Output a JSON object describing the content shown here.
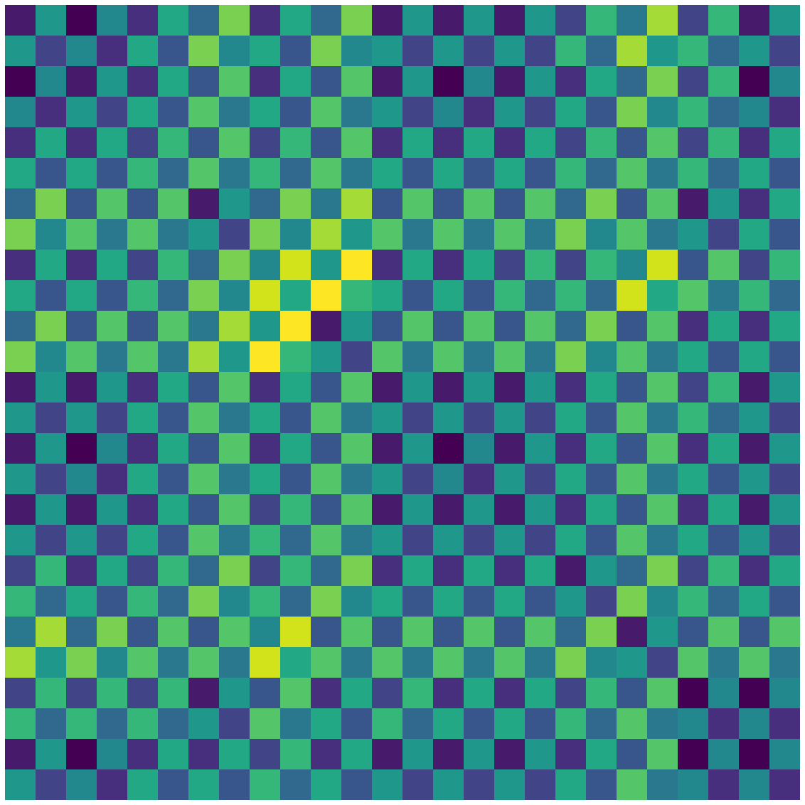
{
  "chart_data": {
    "type": "heatmap",
    "color": "viridis",
    "tick_labels": false,
    "grid": false,
    "cells": [
      [
        0.25,
        0.6,
        0.2,
        0.55,
        0.3,
        0.65,
        0.45,
        0.8,
        0.3,
        0.65,
        0.45,
        0.8,
        0.25,
        0.6,
        0.25,
        0.6,
        0.25,
        0.6,
        0.35,
        0.7,
        0.5,
        0.85,
        0.35,
        0.7,
        0.25,
        0.6
      ],
      [
        0.6,
        0.35,
        0.55,
        0.3,
        0.65,
        0.4,
        0.8,
        0.55,
        0.65,
        0.4,
        0.8,
        0.55,
        0.6,
        0.35,
        0.6,
        0.35,
        0.6,
        0.35,
        0.7,
        0.45,
        0.85,
        0.6,
        0.7,
        0.45,
        0.6,
        0.35
      ],
      [
        0.2,
        0.55,
        0.25,
        0.6,
        0.3,
        0.65,
        0.4,
        0.75,
        0.3,
        0.65,
        0.4,
        0.75,
        0.25,
        0.6,
        0.2,
        0.55,
        0.25,
        0.6,
        0.3,
        0.65,
        0.45,
        0.8,
        0.35,
        0.7,
        0.2,
        0.55
      ],
      [
        0.55,
        0.3,
        0.6,
        0.35,
        0.65,
        0.4,
        0.75,
        0.5,
        0.65,
        0.4,
        0.75,
        0.5,
        0.6,
        0.35,
        0.55,
        0.3,
        0.6,
        0.35,
        0.65,
        0.4,
        0.8,
        0.55,
        0.7,
        0.45,
        0.55,
        0.3
      ],
      [
        0.3,
        0.65,
        0.3,
        0.65,
        0.35,
        0.7,
        0.4,
        0.75,
        0.35,
        0.7,
        0.4,
        0.75,
        0.3,
        0.65,
        0.3,
        0.65,
        0.3,
        0.65,
        0.35,
        0.7,
        0.4,
        0.75,
        0.35,
        0.7,
        0.3,
        0.65
      ],
      [
        0.65,
        0.4,
        0.65,
        0.4,
        0.7,
        0.45,
        0.75,
        0.5,
        0.7,
        0.45,
        0.75,
        0.5,
        0.65,
        0.4,
        0.65,
        0.4,
        0.65,
        0.4,
        0.7,
        0.45,
        0.75,
        0.5,
        0.7,
        0.45,
        0.65,
        0.4
      ],
      [
        0.45,
        0.8,
        0.4,
        0.75,
        0.4,
        0.75,
        0.25,
        0.6,
        0.45,
        0.8,
        0.5,
        0.85,
        0.4,
        0.75,
        0.4,
        0.75,
        0.4,
        0.75,
        0.45,
        0.8,
        0.4,
        0.75,
        0.25,
        0.6,
        0.3,
        0.65
      ],
      [
        0.8,
        0.55,
        0.75,
        0.5,
        0.75,
        0.5,
        0.6,
        0.35,
        0.8,
        0.55,
        0.85,
        0.6,
        0.75,
        0.5,
        0.75,
        0.5,
        0.75,
        0.5,
        0.8,
        0.55,
        0.75,
        0.5,
        0.6,
        0.35,
        0.65,
        0.4
      ],
      [
        0.3,
        0.65,
        0.3,
        0.65,
        0.35,
        0.7,
        0.45,
        0.8,
        0.55,
        0.9,
        0.6,
        0.95,
        0.3,
        0.65,
        0.3,
        0.65,
        0.35,
        0.7,
        0.35,
        0.7,
        0.55,
        0.9,
        0.4,
        0.75,
        0.35,
        0.7
      ],
      [
        0.65,
        0.4,
        0.65,
        0.4,
        0.7,
        0.45,
        0.8,
        0.55,
        0.9,
        0.65,
        0.95,
        0.7,
        0.65,
        0.4,
        0.65,
        0.4,
        0.7,
        0.45,
        0.7,
        0.45,
        0.9,
        0.65,
        0.75,
        0.5,
        0.7,
        0.45
      ],
      [
        0.45,
        0.8,
        0.4,
        0.75,
        0.4,
        0.75,
        0.5,
        0.85,
        0.6,
        0.95,
        0.25,
        0.6,
        0.4,
        0.75,
        0.4,
        0.75,
        0.4,
        0.75,
        0.45,
        0.8,
        0.4,
        0.75,
        0.3,
        0.65,
        0.3,
        0.65
      ],
      [
        0.8,
        0.55,
        0.75,
        0.5,
        0.75,
        0.5,
        0.85,
        0.6,
        0.95,
        0.7,
        0.6,
        0.35,
        0.75,
        0.5,
        0.75,
        0.5,
        0.75,
        0.5,
        0.8,
        0.55,
        0.75,
        0.5,
        0.65,
        0.4,
        0.65,
        0.4
      ],
      [
        0.25,
        0.6,
        0.25,
        0.6,
        0.3,
        0.65,
        0.4,
        0.75,
        0.3,
        0.65,
        0.4,
        0.75,
        0.25,
        0.6,
        0.25,
        0.6,
        0.25,
        0.6,
        0.3,
        0.65,
        0.4,
        0.75,
        0.35,
        0.7,
        0.25,
        0.6
      ],
      [
        0.6,
        0.35,
        0.6,
        0.35,
        0.65,
        0.4,
        0.75,
        0.5,
        0.65,
        0.4,
        0.75,
        0.5,
        0.6,
        0.35,
        0.6,
        0.35,
        0.6,
        0.35,
        0.65,
        0.4,
        0.75,
        0.5,
        0.7,
        0.45,
        0.6,
        0.35
      ],
      [
        0.25,
        0.6,
        0.2,
        0.55,
        0.3,
        0.65,
        0.4,
        0.75,
        0.3,
        0.65,
        0.4,
        0.75,
        0.25,
        0.6,
        0.2,
        0.55,
        0.25,
        0.6,
        0.3,
        0.65,
        0.4,
        0.75,
        0.3,
        0.65,
        0.25,
        0.6
      ],
      [
        0.6,
        0.35,
        0.55,
        0.3,
        0.65,
        0.4,
        0.75,
        0.5,
        0.65,
        0.4,
        0.75,
        0.5,
        0.6,
        0.35,
        0.55,
        0.3,
        0.6,
        0.35,
        0.65,
        0.4,
        0.75,
        0.5,
        0.65,
        0.4,
        0.6,
        0.35
      ],
      [
        0.25,
        0.6,
        0.25,
        0.6,
        0.3,
        0.65,
        0.4,
        0.75,
        0.35,
        0.7,
        0.4,
        0.75,
        0.25,
        0.6,
        0.25,
        0.6,
        0.25,
        0.6,
        0.3,
        0.65,
        0.4,
        0.75,
        0.3,
        0.65,
        0.25,
        0.6
      ],
      [
        0.6,
        0.35,
        0.6,
        0.35,
        0.65,
        0.4,
        0.75,
        0.5,
        0.7,
        0.45,
        0.75,
        0.5,
        0.6,
        0.35,
        0.6,
        0.35,
        0.6,
        0.35,
        0.65,
        0.4,
        0.75,
        0.5,
        0.65,
        0.4,
        0.6,
        0.35
      ],
      [
        0.35,
        0.7,
        0.3,
        0.65,
        0.35,
        0.7,
        0.45,
        0.8,
        0.35,
        0.7,
        0.45,
        0.8,
        0.3,
        0.65,
        0.3,
        0.65,
        0.3,
        0.65,
        0.25,
        0.6,
        0.45,
        0.8,
        0.35,
        0.7,
        0.3,
        0.65
      ],
      [
        0.7,
        0.45,
        0.65,
        0.4,
        0.7,
        0.45,
        0.8,
        0.55,
        0.7,
        0.45,
        0.8,
        0.55,
        0.65,
        0.4,
        0.65,
        0.4,
        0.65,
        0.4,
        0.6,
        0.35,
        0.8,
        0.55,
        0.7,
        0.45,
        0.65,
        0.4
      ],
      [
        0.5,
        0.85,
        0.45,
        0.8,
        0.4,
        0.75,
        0.4,
        0.75,
        0.55,
        0.9,
        0.4,
        0.75,
        0.4,
        0.75,
        0.4,
        0.75,
        0.4,
        0.75,
        0.45,
        0.8,
        0.25,
        0.6,
        0.4,
        0.75,
        0.4,
        0.75
      ],
      [
        0.85,
        0.6,
        0.8,
        0.55,
        0.75,
        0.5,
        0.75,
        0.5,
        0.9,
        0.65,
        0.75,
        0.5,
        0.75,
        0.5,
        0.75,
        0.5,
        0.75,
        0.5,
        0.8,
        0.55,
        0.6,
        0.35,
        0.75,
        0.5,
        0.75,
        0.5
      ],
      [
        0.35,
        0.7,
        0.35,
        0.7,
        0.35,
        0.7,
        0.25,
        0.6,
        0.4,
        0.75,
        0.3,
        0.65,
        0.35,
        0.7,
        0.3,
        0.65,
        0.3,
        0.65,
        0.35,
        0.7,
        0.4,
        0.75,
        0.2,
        0.55,
        0.2,
        0.55
      ],
      [
        0.7,
        0.45,
        0.7,
        0.45,
        0.7,
        0.45,
        0.6,
        0.35,
        0.75,
        0.5,
        0.65,
        0.4,
        0.7,
        0.45,
        0.65,
        0.4,
        0.65,
        0.4,
        0.7,
        0.45,
        0.75,
        0.5,
        0.55,
        0.3,
        0.55,
        0.3
      ],
      [
        0.25,
        0.6,
        0.2,
        0.55,
        0.3,
        0.65,
        0.3,
        0.65,
        0.35,
        0.7,
        0.3,
        0.65,
        0.25,
        0.6,
        0.25,
        0.6,
        0.25,
        0.6,
        0.3,
        0.65,
        0.4,
        0.75,
        0.2,
        0.55,
        0.2,
        0.55
      ],
      [
        0.6,
        0.35,
        0.55,
        0.3,
        0.65,
        0.4,
        0.65,
        0.4,
        0.7,
        0.45,
        0.65,
        0.4,
        0.6,
        0.35,
        0.6,
        0.35,
        0.6,
        0.35,
        0.65,
        0.4,
        0.75,
        0.5,
        0.55,
        0.3,
        0.55,
        0.3
      ]
    ]
  }
}
